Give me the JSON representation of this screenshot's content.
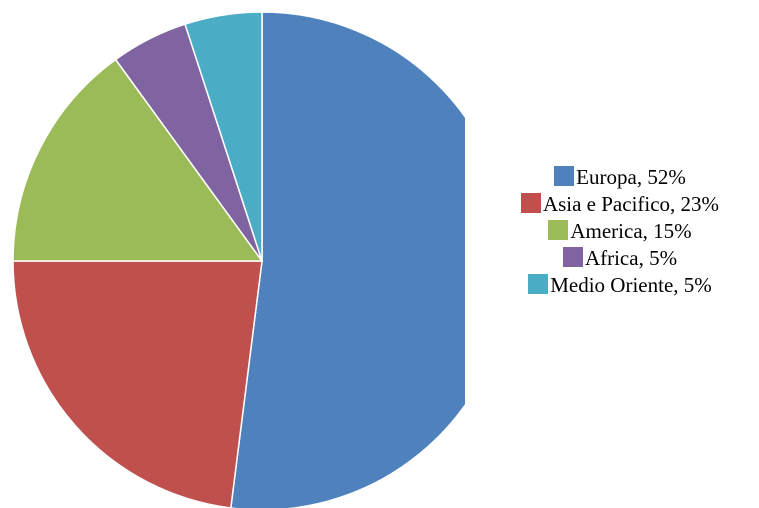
{
  "chart_data": {
    "type": "pie",
    "values": [
      52,
      23,
      15,
      5,
      5
    ],
    "value_labels": [
      "Europa, 52%",
      "Asia e Pacifico, 23%",
      "America, 15%",
      "Africa, 5%",
      "Medio Oriente, 5%"
    ],
    "colors": [
      "#4f81bd",
      "#c0504d",
      "#9bbb59",
      "#8064a2",
      "#4bacc6"
    ]
  }
}
